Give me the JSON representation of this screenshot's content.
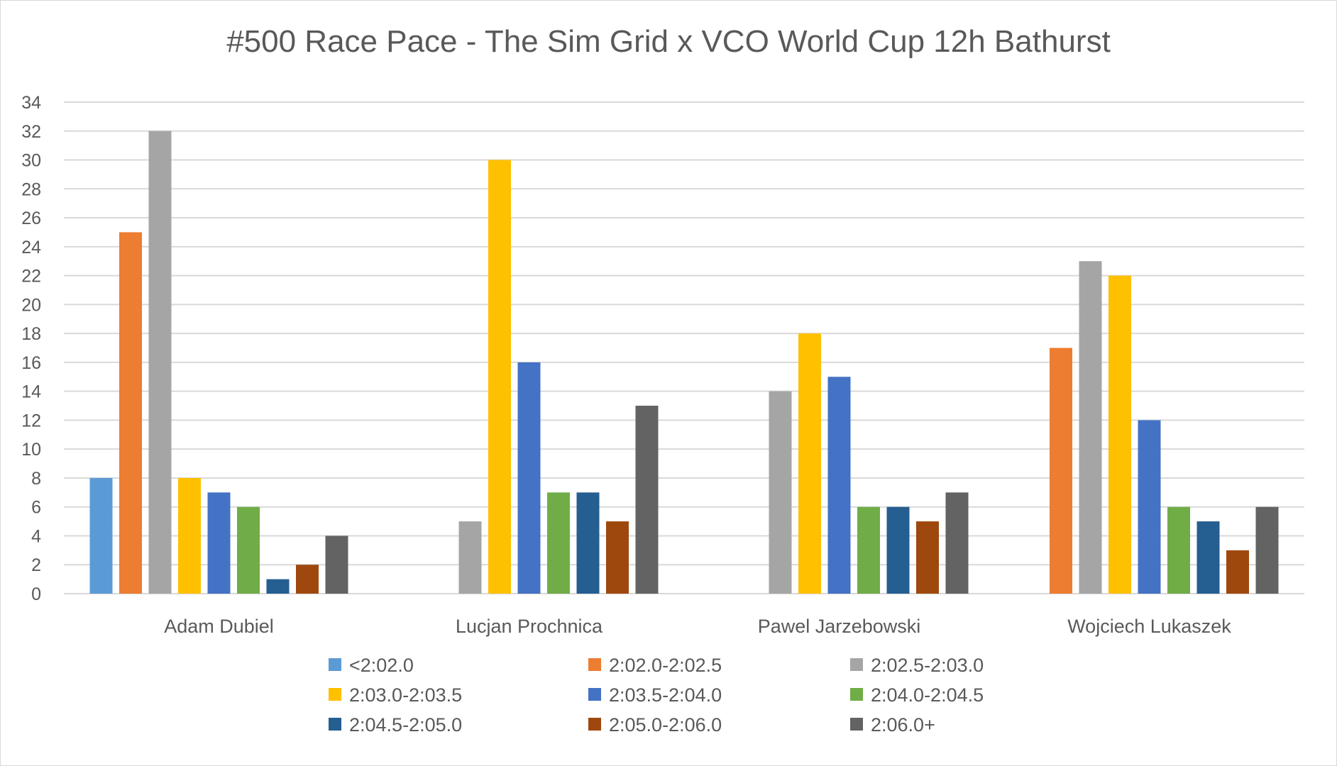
{
  "chart_data": {
    "type": "bar",
    "title": "#500 Race Pace - The Sim Grid x VCO World Cup 12h Bathurst",
    "xlabel": "",
    "ylabel": "",
    "ylim": [
      0,
      34
    ],
    "yticks": [
      0,
      2,
      4,
      6,
      8,
      10,
      12,
      14,
      16,
      18,
      20,
      22,
      24,
      26,
      28,
      30,
      32,
      34
    ],
    "grid": true,
    "legend_position": "bottom",
    "categories": [
      "Adam Dubiel",
      "Lucjan Prochnica",
      "Pawel Jarzebowski",
      "Wojciech Lukaszek"
    ],
    "series": [
      {
        "name": "<2:02.0",
        "color": "#5b9bd5",
        "values": [
          8,
          0,
          0,
          0
        ]
      },
      {
        "name": "2:02.0-2:02.5",
        "color": "#ed7d31",
        "values": [
          25,
          0,
          0,
          17
        ]
      },
      {
        "name": "2:02.5-2:03.0",
        "color": "#a5a5a5",
        "values": [
          32,
          5,
          14,
          23
        ]
      },
      {
        "name": "2:03.0-2:03.5",
        "color": "#ffc000",
        "values": [
          8,
          30,
          18,
          22
        ]
      },
      {
        "name": "2:03.5-2:04.0",
        "color": "#4472c4",
        "values": [
          7,
          16,
          15,
          12
        ]
      },
      {
        "name": "2:04.0-2:04.5",
        "color": "#70ad47",
        "values": [
          6,
          7,
          6,
          6
        ]
      },
      {
        "name": "2:04.5-2:05.0",
        "color": "#255e91",
        "values": [
          1,
          7,
          6,
          5
        ]
      },
      {
        "name": "2:05.0-2:06.0",
        "color": "#9e480e",
        "values": [
          2,
          5,
          5,
          3
        ]
      },
      {
        "name": "2:06.0+",
        "color": "#636363",
        "values": [
          4,
          13,
          7,
          6
        ]
      }
    ]
  }
}
